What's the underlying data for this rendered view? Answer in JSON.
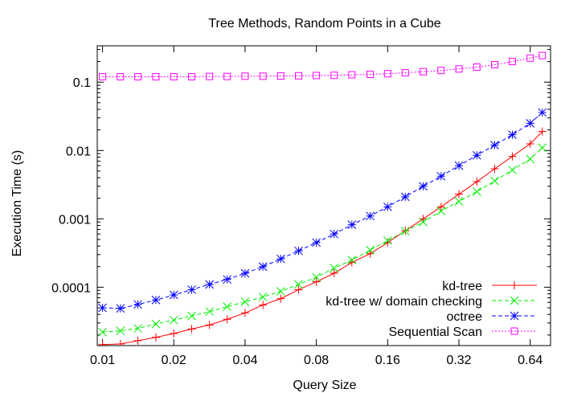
{
  "chart_data": {
    "type": "line",
    "title": "Tree Methods, Random Points in a Cube",
    "xlabel": "Query Size",
    "ylabel": "Execution Time (s)",
    "xscale": "log",
    "yscale": "log",
    "xlim": [
      0.0095,
      0.78
    ],
    "ylim": [
      1.4e-05,
      0.34
    ],
    "x_ticks": [
      0.01,
      0.02,
      0.04,
      0.08,
      0.16,
      0.32,
      0.64
    ],
    "x_tick_labels": [
      "0.01",
      "0.02",
      "0.04",
      "0.08",
      "0.16",
      "0.32",
      "0.64"
    ],
    "y_ticks": [
      0.0001,
      0.001,
      0.01,
      0.1
    ],
    "y_tick_labels": [
      "0.0001",
      "0.001",
      "0.01",
      "0.1"
    ],
    "grid": false,
    "legend_position": "bottom-right",
    "x": [
      0.01,
      0.0119,
      0.0141,
      0.0168,
      0.02,
      0.0238,
      0.0283,
      0.0336,
      0.04,
      0.0476,
      0.0566,
      0.0673,
      0.08,
      0.0951,
      0.113,
      0.135,
      0.16,
      0.19,
      0.226,
      0.269,
      0.32,
      0.381,
      0.453,
      0.538,
      0.64,
      0.72
    ],
    "series": [
      {
        "name": "kd-tree",
        "color": "#ff0000",
        "dash": "solid",
        "marker": "plus",
        "values": [
          1.45e-05,
          1.48e-05,
          1.65e-05,
          1.85e-05,
          2.1e-05,
          2.45e-05,
          2.8e-05,
          3.4e-05,
          4.2e-05,
          5.5e-05,
          6.8e-05,
          9.2e-05,
          0.00012,
          0.00016,
          0.00023,
          0.00031,
          0.00045,
          0.00067,
          0.001,
          0.0015,
          0.0023,
          0.0035,
          0.0054,
          0.0082,
          0.0125,
          0.019
        ]
      },
      {
        "name": "kd-tree w/ domain checking",
        "color": "#00ee00",
        "dash": "dashed",
        "marker": "x",
        "values": [
          2.2e-05,
          2.3e-05,
          2.5e-05,
          2.9e-05,
          3.3e-05,
          3.8e-05,
          4.4e-05,
          5.2e-05,
          6.1e-05,
          7.2e-05,
          8.7e-05,
          0.00011,
          0.00014,
          0.00019,
          0.00025,
          0.00035,
          0.00048,
          0.00066,
          0.0009,
          0.0013,
          0.0018,
          0.0025,
          0.0036,
          0.0052,
          0.0075,
          0.011
        ]
      },
      {
        "name": "octree",
        "color": "#0000ff",
        "dash": "dashed",
        "marker": "star",
        "values": [
          5e-05,
          4.9e-05,
          5.6e-05,
          6.5e-05,
          7.7e-05,
          9.2e-05,
          0.00011,
          0.00013,
          0.00016,
          0.0002,
          0.00026,
          0.00034,
          0.00045,
          0.0006,
          0.00082,
          0.0011,
          0.0015,
          0.0021,
          0.003,
          0.0042,
          0.006,
          0.0085,
          0.012,
          0.017,
          0.025,
          0.036
        ]
      },
      {
        "name": "Sequential Scan",
        "color": "#ff00ff",
        "dash": "dotted",
        "marker": "square",
        "values": [
          0.12,
          0.12,
          0.12,
          0.12,
          0.12,
          0.12,
          0.121,
          0.121,
          0.122,
          0.122,
          0.123,
          0.124,
          0.125,
          0.126,
          0.128,
          0.13,
          0.133,
          0.137,
          0.142,
          0.148,
          0.156,
          0.166,
          0.18,
          0.2,
          0.225,
          0.245
        ]
      }
    ]
  }
}
